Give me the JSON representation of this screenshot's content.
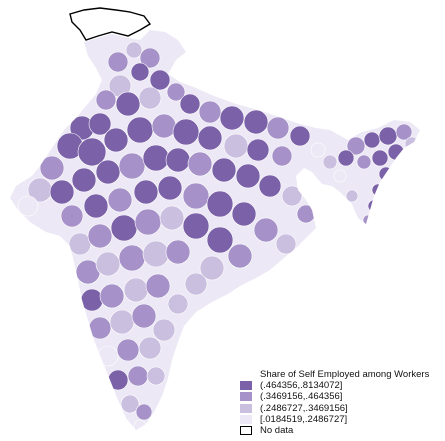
{
  "map": {
    "legend": {
      "title": "Share of Self Employed among Workers",
      "items": [
        {
          "label": "(.464356,.8134072]",
          "color": "#7b62a8"
        },
        {
          "label": "(.3469156,.464356]",
          "color": "#a692c8"
        },
        {
          "label": "(.2486727,.3469156]",
          "color": "#cbbfe0"
        },
        {
          "label": "[.0184519,.2486727]",
          "color": "#ece8f5"
        },
        {
          "label": "No data",
          "color": "#ffffff"
        }
      ]
    },
    "colors": {
      "border": "#ffffff",
      "no_data_outline": "#000000"
    }
  }
}
